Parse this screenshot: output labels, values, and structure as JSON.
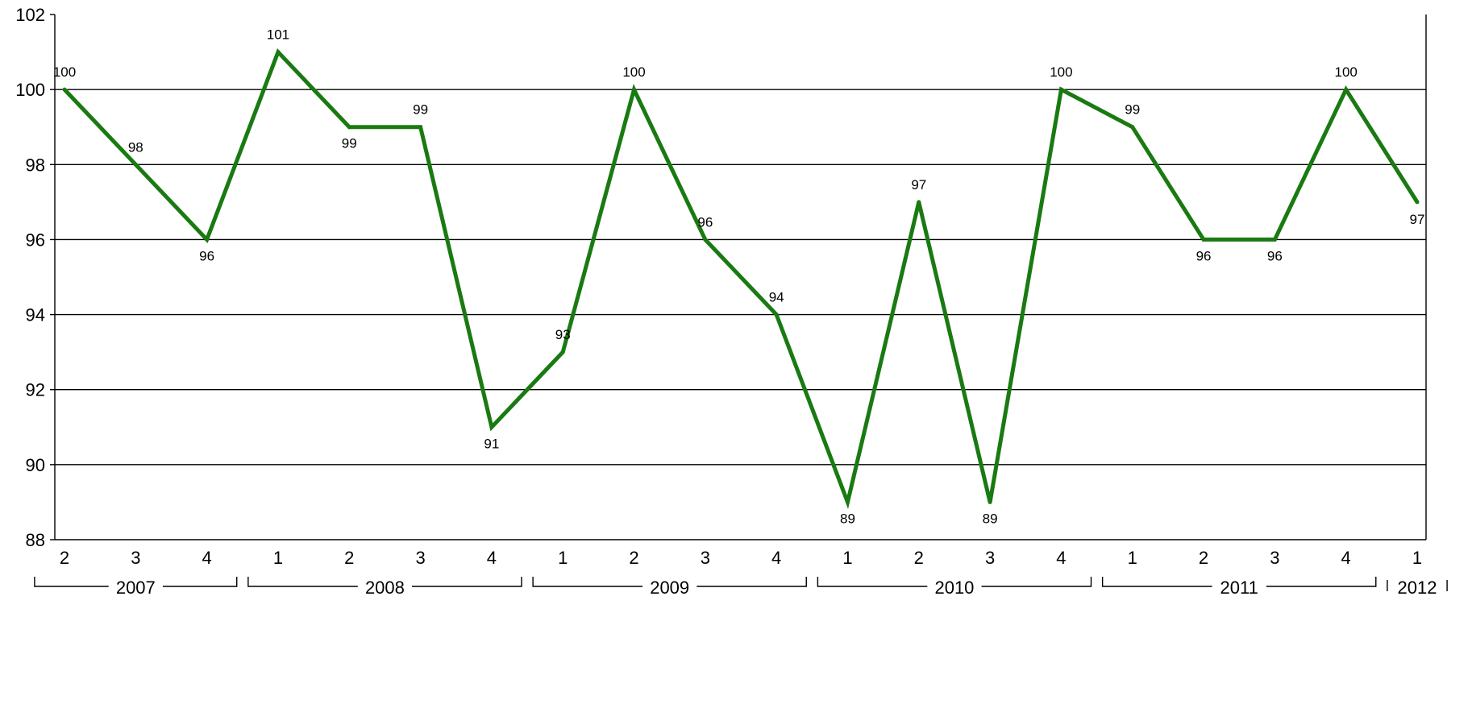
{
  "chart_data": {
    "type": "line",
    "title": "",
    "xlabel": "",
    "ylabel": "",
    "ylim": [
      88,
      102
    ],
    "yticks": [
      "88",
      "90",
      "92",
      "94",
      "96",
      "98",
      "100",
      "102"
    ],
    "grid": true,
    "legend": "none",
    "line_color": "#1a7a12",
    "categories": [
      "2",
      "3",
      "4",
      "1",
      "2",
      "3",
      "4",
      "1",
      "2",
      "3",
      "4",
      "1",
      "2",
      "3",
      "4",
      "1",
      "2",
      "3",
      "4",
      "1"
    ],
    "values": [
      100,
      98,
      96,
      101,
      99,
      99,
      91,
      93,
      100,
      96,
      94,
      89,
      97,
      89,
      100,
      99,
      96,
      96,
      100,
      97
    ],
    "data_labels": [
      "100",
      "98",
      "96",
      "101",
      "99",
      "99",
      "91",
      "93",
      "100",
      "96",
      "94",
      "89",
      "97",
      "89",
      "100",
      "99",
      "96",
      "96",
      "100",
      "97"
    ],
    "year_groups": [
      {
        "label": "2007",
        "start": 0,
        "end": 2
      },
      {
        "label": "2008",
        "start": 3,
        "end": 6
      },
      {
        "label": "2009",
        "start": 7,
        "end": 10
      },
      {
        "label": "2010",
        "start": 11,
        "end": 14
      },
      {
        "label": "2011",
        "start": 15,
        "end": 18
      },
      {
        "label": "2012",
        "start": 19,
        "end": 19
      }
    ]
  }
}
